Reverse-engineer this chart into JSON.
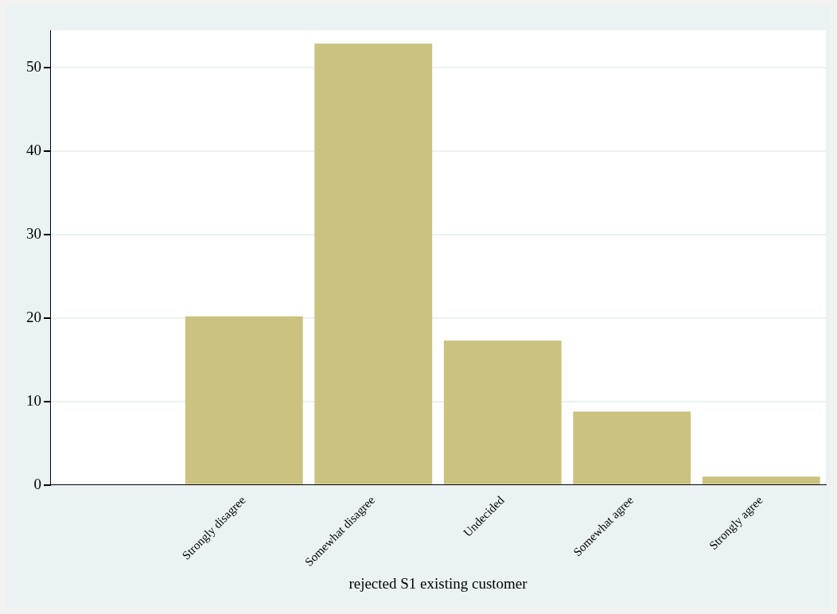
{
  "chart_data": {
    "type": "bar",
    "xlabel": "rejected S1 existing customer",
    "categories": [
      null,
      "Strongly disagree",
      "Somewhat disagree",
      "Undecided",
      "Somewhat agree",
      "Strongly agree"
    ],
    "values": [
      null,
      20.2,
      52.9,
      17.3,
      8.8,
      1.0
    ],
    "color": "#cbc27f",
    "ylim": [
      0,
      54.5
    ],
    "yticks": [
      0,
      10,
      20,
      30,
      40,
      50
    ],
    "grid": "y"
  }
}
